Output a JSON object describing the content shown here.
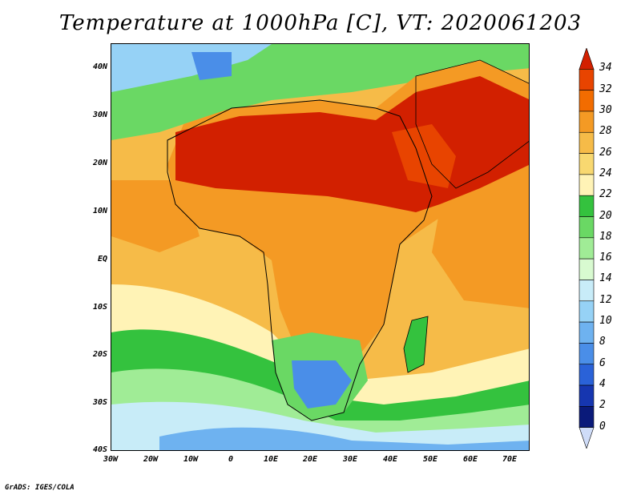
{
  "title": "Temperature at 1000hPa [C], VT: 2020061203",
  "footer": "GrADS: IGES/COLA",
  "map": {
    "lat_labels": [
      "40N",
      "30N",
      "20N",
      "10N",
      "EQ",
      "10S",
      "20S",
      "30S",
      "40S"
    ],
    "lon_labels": [
      "30W",
      "20W",
      "10W",
      "0",
      "10E",
      "20E",
      "30E",
      "40E",
      "50E",
      "60E",
      "70E"
    ],
    "lon_range": [
      -30,
      75
    ],
    "lat_range": [
      -40,
      45
    ]
  },
  "colorbar": {
    "labels": [
      "34",
      "32",
      "30",
      "28",
      "26",
      "24",
      "22",
      "20",
      "18",
      "16",
      "14",
      "12",
      "10",
      "8",
      "6",
      "4",
      "2",
      "0"
    ],
    "colors": [
      "#d22000",
      "#e84400",
      "#f26c00",
      "#f49a24",
      "#f6bb48",
      "#f8d870",
      "#fff3b6",
      "#34c23e",
      "#6ad864",
      "#a0ec96",
      "#d8fad0",
      "#c8ecf8",
      "#96d2f6",
      "#6eb2f0",
      "#4a8ee8",
      "#2a62d8",
      "#1636b0",
      "#0a1a7a",
      "#cfdcf8"
    ]
  }
}
